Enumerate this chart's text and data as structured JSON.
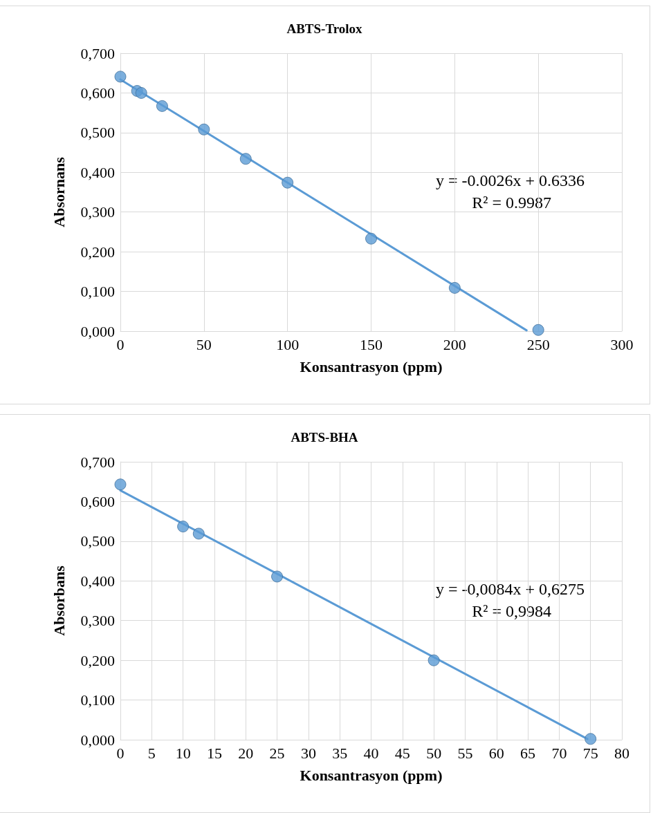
{
  "chart_data": [
    {
      "type": "scatter",
      "title": "ABTS-Trolox",
      "xlabel": "Konsantrasyon (ppm)",
      "ylabel": "Absornans",
      "annotations": [
        "y = -0.0026x + 0.6336",
        "R² = 0.9987"
      ],
      "x": [
        0,
        10,
        12.5,
        25,
        50,
        75,
        100,
        150,
        200,
        250
      ],
      "series": [
        {
          "color": "#5b9bd5",
          "marker": "circle",
          "values": [
            0.641,
            0.605,
            0.6,
            0.567,
            0.508,
            0.434,
            0.374,
            0.233,
            0.109,
            0.003
          ]
        },
        {
          "type": "line",
          "color": "#5b9bd5",
          "marker": "none",
          "x": [
            0,
            243
          ],
          "values": [
            0.634,
            0.002
          ]
        }
      ],
      "xlim": [
        0,
        300
      ],
      "xticks": [
        0,
        50,
        100,
        150,
        200,
        250,
        300
      ],
      "ylim": [
        0,
        0.7
      ],
      "yticks": [
        {
          "value": 0,
          "label": "0,000"
        },
        {
          "value": 0.1,
          "label": "0,100"
        },
        {
          "value": 0.2,
          "label": "0,200"
        },
        {
          "value": 0.3,
          "label": "0,300"
        },
        {
          "value": 0.4,
          "label": "0,400"
        },
        {
          "value": 0.5,
          "label": "0,500"
        },
        {
          "value": 0.6,
          "label": "0,600"
        },
        {
          "value": 0.7,
          "label": "0,700"
        }
      ],
      "grid": true
    },
    {
      "type": "scatter",
      "title": "ABTS-BHA",
      "xlabel": "Konsantrasyon (ppm)",
      "ylabel": "Absorbans",
      "annotations": [
        "y = -0,0084x + 0,6275",
        "R² = 0,9984"
      ],
      "x": [
        0,
        10,
        12.5,
        25,
        50,
        75
      ],
      "series": [
        {
          "color": "#5b9bd5",
          "marker": "circle",
          "values": [
            0.643,
            0.537,
            0.519,
            0.411,
            0.2,
            0.002
          ]
        },
        {
          "type": "line",
          "color": "#5b9bd5",
          "marker": "none",
          "x": [
            0,
            74.5
          ],
          "values": [
            0.628,
            0.002
          ]
        }
      ],
      "xlim": [
        0,
        80
      ],
      "xticks": [
        0,
        5,
        10,
        15,
        20,
        25,
        30,
        35,
        40,
        45,
        50,
        55,
        60,
        65,
        70,
        75,
        80
      ],
      "ylim": [
        0,
        0.7
      ],
      "yticks": [
        {
          "value": 0,
          "label": "0,000"
        },
        {
          "value": 0.1,
          "label": "0,100"
        },
        {
          "value": 0.2,
          "label": "0,200"
        },
        {
          "value": 0.3,
          "label": "0,300"
        },
        {
          "value": 0.4,
          "label": "0,400"
        },
        {
          "value": 0.5,
          "label": "0,500"
        },
        {
          "value": 0.6,
          "label": "0,600"
        },
        {
          "value": 0.7,
          "label": "0,700"
        }
      ],
      "grid": true
    }
  ]
}
